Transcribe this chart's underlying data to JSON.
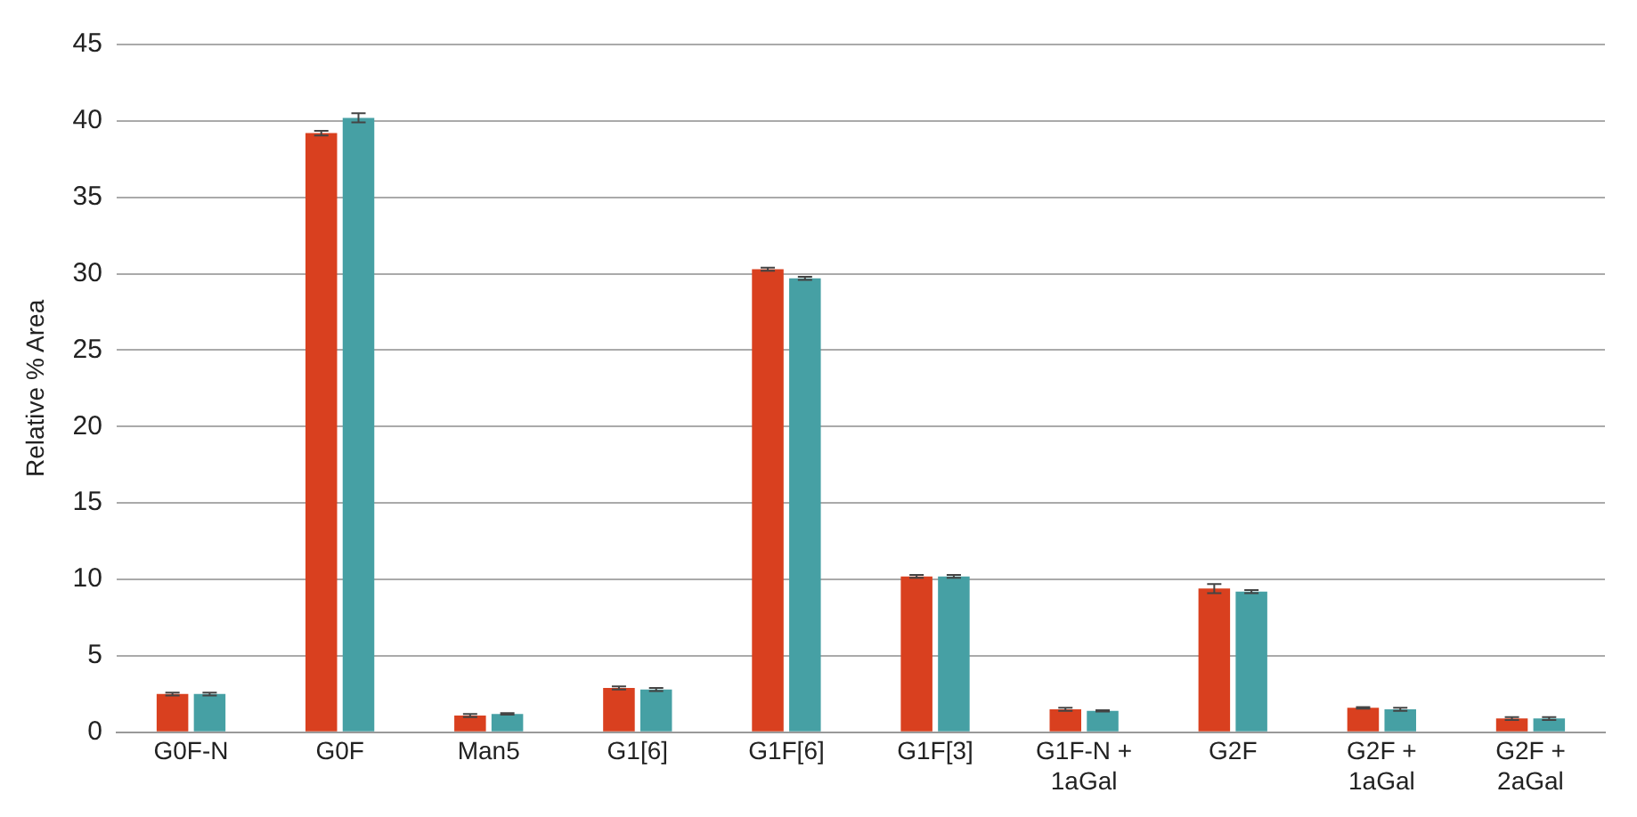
{
  "chart_data": {
    "type": "bar",
    "ylabel": "Relative % Area",
    "categories": [
      "G0F-N",
      "G0F",
      "Man5",
      "G1[6]",
      "G1F[6]",
      "G1F[3]",
      "G1F-N +\n1aGal",
      "G2F",
      "G2F +\n1aGal",
      "G2F +\n2aGal"
    ],
    "series": [
      {
        "color": "#d9401f",
        "values": [
          2.5,
          39.2,
          1.1,
          2.9,
          30.3,
          10.2,
          1.5,
          9.4,
          1.6,
          0.9
        ],
        "errors": [
          0.1,
          0.15,
          0.1,
          0.1,
          0.1,
          0.1,
          0.1,
          0.3,
          0.05,
          0.1
        ]
      },
      {
        "color": "#46a0a4",
        "values": [
          2.5,
          40.2,
          1.2,
          2.8,
          29.7,
          10.2,
          1.4,
          9.2,
          1.5,
          0.9
        ],
        "errors": [
          0.1,
          0.3,
          0.05,
          0.1,
          0.1,
          0.1,
          0.05,
          0.1,
          0.1,
          0.1
        ]
      }
    ],
    "ylim": [
      0,
      45
    ],
    "yticks": [
      0,
      5,
      10,
      15,
      20,
      25,
      30,
      35,
      40,
      45
    ],
    "grid": "y",
    "legend": false
  }
}
